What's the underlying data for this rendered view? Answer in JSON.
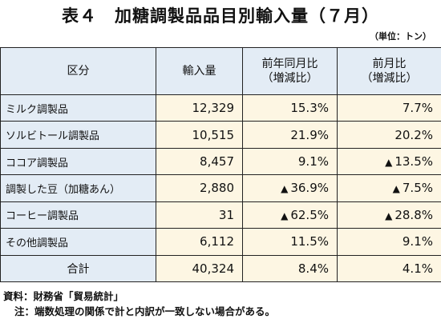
{
  "title": "表４　加糖調製品品目別輸入量（７月）",
  "unit": "（単位：トン）",
  "headers": {
    "category": "区分",
    "import": "輸入量",
    "yoy_line1": "前年同月比",
    "yoy_line2": "（増減比）",
    "mom_line1": "前月比",
    "mom_line2": "（増減比）"
  },
  "rows": [
    {
      "name": "ミルク調製品",
      "import": "12,329",
      "yoy": "15.3%",
      "yoy_mark": "",
      "mom": "7.7%",
      "mom_mark": ""
    },
    {
      "name": "ソルビトール調製品",
      "import": "10,515",
      "yoy": "21.9%",
      "yoy_mark": "",
      "mom": "20.2%",
      "mom_mark": ""
    },
    {
      "name": "ココア調製品",
      "import": "8,457",
      "yoy": "9.1%",
      "yoy_mark": "",
      "mom": "13.5%",
      "mom_mark": "▲"
    },
    {
      "name": "調製した豆（加糖あん）",
      "import": "2,880",
      "yoy": "36.9%",
      "yoy_mark": "▲",
      "mom": "7.5%",
      "mom_mark": "▲"
    },
    {
      "name": "コーヒー調製品",
      "import": "31",
      "yoy": "62.5%",
      "yoy_mark": "▲",
      "mom": "28.8%",
      "mom_mark": "▲"
    },
    {
      "name": "その他調製品",
      "import": "6,112",
      "yoy": "11.5%",
      "yoy_mark": "",
      "mom": "9.1%",
      "mom_mark": ""
    }
  ],
  "total": {
    "name": "合計",
    "import": "40,324",
    "yoy": "8.4%",
    "mom": "4.1%"
  },
  "notes": {
    "source": "資料：財務省「貿易統計」",
    "note": "注：端数処理の関係で計と内訳が一致しない場合がある。"
  }
}
